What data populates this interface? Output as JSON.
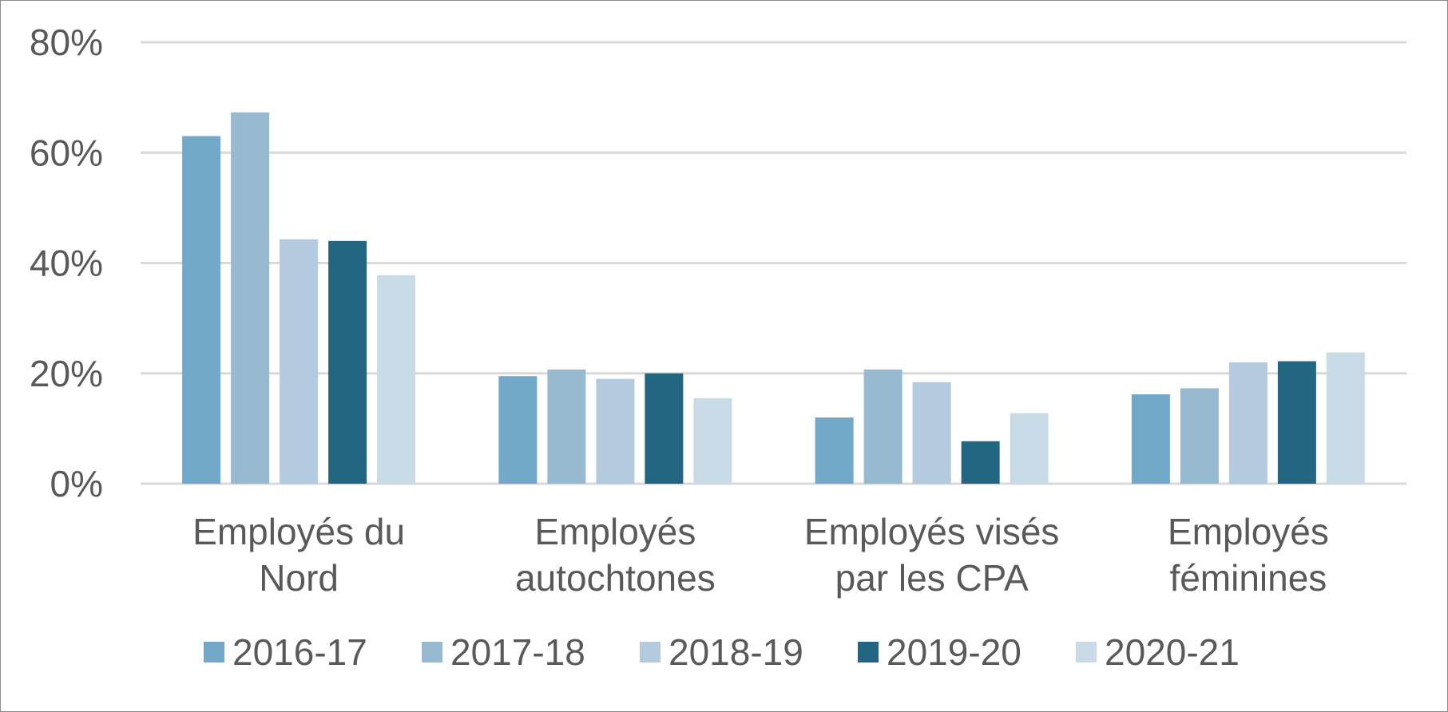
{
  "chart_data": {
    "type": "bar",
    "title": "",
    "xlabel": "",
    "ylabel": "",
    "ylim": [
      0,
      80
    ],
    "y_tick_labels": [
      "0%",
      "20%",
      "40%",
      "60%",
      "80%"
    ],
    "y_tick_values": [
      0,
      20,
      40,
      60,
      80
    ],
    "grid": true,
    "legend_position": "bottom",
    "categories": [
      [
        "Employés du",
        "Nord"
      ],
      [
        "Employés",
        "autochtones"
      ],
      [
        "Employés visés",
        "par les CPA"
      ],
      [
        "Employés",
        "féminines"
      ]
    ],
    "series": [
      {
        "name": "2016-17",
        "color": "#72a9c8",
        "values": [
          63,
          19.5,
          12,
          16.2
        ]
      },
      {
        "name": "2017-18",
        "color": "#97bad1",
        "values": [
          67.3,
          20.7,
          20.7,
          17.3
        ]
      },
      {
        "name": "2018-19",
        "color": "#b3cadf",
        "values": [
          44.3,
          19,
          18.4,
          22
        ]
      },
      {
        "name": "2019-20",
        "color": "#236681",
        "values": [
          44,
          20,
          7.7,
          22.2
        ]
      },
      {
        "name": "2020-21",
        "color": "#c9dbe6",
        "values": [
          37.8,
          15.5,
          12.8,
          23.8
        ]
      }
    ]
  }
}
